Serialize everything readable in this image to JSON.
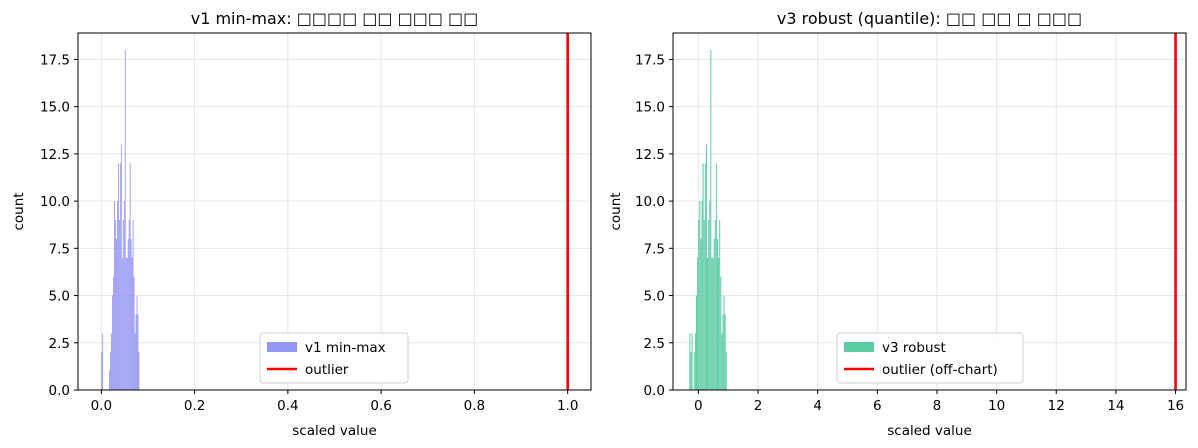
{
  "chart_data": [
    {
      "type": "bar",
      "title": "v1 min-max: □□□□ □□ □□□ □□",
      "xlabel": "scaled value",
      "ylabel": "count",
      "xlim": [
        -0.05,
        1.05
      ],
      "ylim": [
        0,
        18.9
      ],
      "xticks": [
        0.0,
        0.2,
        0.4,
        0.6,
        0.8,
        1.0
      ],
      "xtick_labels": [
        "0.0",
        "0.2",
        "0.4",
        "0.6",
        "0.8",
        "1.0"
      ],
      "yticks": [
        0,
        2.5,
        5,
        7.5,
        10,
        12.5,
        15,
        17.5
      ],
      "ytick_labels": [
        "0.0",
        "2.5",
        "5.0",
        "7.5",
        "10.0",
        "12.5",
        "15.0",
        "17.5"
      ],
      "grid": true,
      "legend_position": "lower center",
      "bar_color": "#9595f3",
      "outlier_color": "#ff0000",
      "bins": {
        "start": 0.0,
        "width": 0.0021,
        "counts": [
          2,
          3,
          0,
          0,
          0,
          0,
          0,
          0,
          1,
          2,
          3,
          5,
          6,
          10,
          9,
          8,
          10,
          12,
          9,
          12,
          13,
          7,
          9,
          10,
          18,
          7,
          7,
          8,
          9,
          12,
          8,
          7,
          9,
          6,
          3,
          4,
          5,
          4,
          2
        ]
      },
      "outlier_x": 1.0,
      "legend": [
        {
          "label": "v1 min-max",
          "kind": "patch",
          "color": "#9595f3"
        },
        {
          "label": "outlier",
          "kind": "line",
          "color": "#ff0000"
        }
      ]
    },
    {
      "type": "bar",
      "title": "v3 robust (quantile): □□ □□ □ □□□",
      "xlabel": "scaled value",
      "ylabel": "count",
      "xlim": [
        -0.85,
        16.35
      ],
      "ylim": [
        0,
        18.9
      ],
      "xticks": [
        0,
        2,
        4,
        6,
        8,
        10,
        12,
        14,
        16
      ],
      "xtick_labels": [
        "0",
        "2",
        "4",
        "6",
        "8",
        "10",
        "12",
        "14",
        "16"
      ],
      "yticks": [
        0,
        2.5,
        5,
        7.5,
        10,
        12.5,
        15,
        17.5
      ],
      "ytick_labels": [
        "0.0",
        "2.5",
        "5.0",
        "7.5",
        "10.0",
        "12.5",
        "15.0",
        "17.5"
      ],
      "grid": true,
      "legend_position": "lower center",
      "bar_color": "#5ccca3",
      "outlier_color": "#ff0000",
      "bins": {
        "start": -0.3,
        "width": 0.037,
        "counts": [
          3,
          2,
          3,
          0,
          2,
          3,
          5,
          7,
          9,
          10,
          8,
          10,
          12,
          9,
          12,
          13,
          7,
          9,
          10,
          18,
          7,
          7,
          8,
          9,
          12,
          8,
          7,
          9,
          6,
          3,
          4,
          5,
          4,
          2
        ]
      },
      "outlier_x": 16.0,
      "legend": [
        {
          "label": "v3 robust",
          "kind": "patch",
          "color": "#5ccca3"
        },
        {
          "label": "outlier (off-chart)",
          "kind": "line",
          "color": "#ff0000"
        }
      ]
    }
  ]
}
